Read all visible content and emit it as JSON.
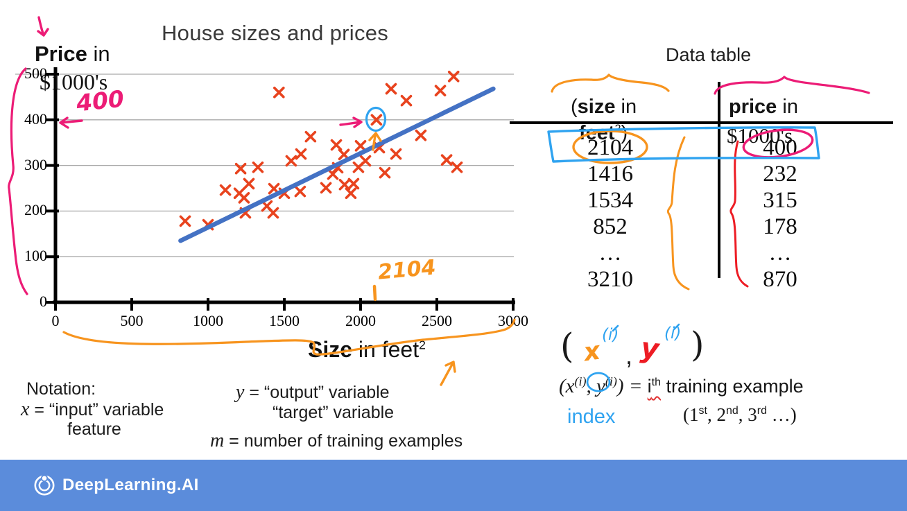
{
  "slide_title": "House sizes and prices",
  "chart_data": {
    "type": "scatter",
    "title": "House sizes and prices",
    "xlabel": {
      "bold": "Size",
      "rest": " in feet",
      "sup": "2"
    },
    "ylabel": {
      "bold": "Price",
      "rest": " in",
      "line2": "$1000's"
    },
    "xlim": [
      0,
      3000
    ],
    "ylim": [
      0,
      500
    ],
    "x_ticks": [
      0,
      500,
      1000,
      1500,
      2000,
      2500,
      3000
    ],
    "y_ticks": [
      0,
      100,
      200,
      300,
      400,
      500
    ],
    "grid": "horizontal",
    "legend": "none",
    "marker": "x",
    "marker_color": "#E8431E",
    "trend_color": "#4472C4",
    "points": [
      [
        850,
        178
      ],
      [
        1000,
        170
      ],
      [
        1114,
        246
      ],
      [
        1205,
        239
      ],
      [
        1214,
        293
      ],
      [
        1236,
        229
      ],
      [
        1245,
        196
      ],
      [
        1268,
        260
      ],
      [
        1327,
        296
      ],
      [
        1386,
        211
      ],
      [
        1427,
        196
      ],
      [
        1432,
        249
      ],
      [
        1465,
        460
      ],
      [
        1500,
        239
      ],
      [
        1545,
        310
      ],
      [
        1604,
        243
      ],
      [
        1609,
        325
      ],
      [
        1672,
        363
      ],
      [
        1773,
        251
      ],
      [
        1818,
        281
      ],
      [
        1841,
        345
      ],
      [
        1850,
        295
      ],
      [
        1891,
        324
      ],
      [
        1895,
        258
      ],
      [
        1936,
        239
      ],
      [
        1954,
        260
      ],
      [
        1986,
        296
      ],
      [
        2000,
        343
      ],
      [
        2032,
        310
      ],
      [
        2104,
        400
      ],
      [
        2123,
        339
      ],
      [
        2159,
        284
      ],
      [
        2200,
        468
      ],
      [
        2232,
        325
      ],
      [
        2300,
        442
      ],
      [
        2395,
        366
      ],
      [
        2523,
        464
      ],
      [
        2564,
        312
      ],
      [
        2610,
        495
      ],
      [
        2632,
        296
      ]
    ],
    "highlighted_point": [
      2104,
      400
    ],
    "trend_line": {
      "x1": 820,
      "y1": 135,
      "x2": 2870,
      "y2": 468
    }
  },
  "annotations": {
    "price_400": "400",
    "size_2104": "2104"
  },
  "data_table": {
    "title": "Data table",
    "size_header": {
      "open": "(",
      "bold": "size",
      "rest": " in",
      "base2": "feet",
      "sup2": "2",
      "close2": ")"
    },
    "price_header": {
      "bold": "price",
      "rest": " in",
      "line2": "$1000's"
    },
    "rows": [
      [
        "2104",
        "400"
      ],
      [
        "1416",
        "232"
      ],
      [
        "1534",
        "315"
      ],
      [
        "852",
        "178"
      ],
      [
        "…",
        "…"
      ],
      [
        "3210",
        "870"
      ]
    ]
  },
  "notation": {
    "heading": "Notation:",
    "x_var": "x",
    "x_rest": " = “input” variable",
    "x_sub": "feature",
    "y_var": "y",
    "y_rest": " = “output” variable",
    "y_sub": "“target” variable",
    "m_var": "m",
    "m_rest": " = number of training examples"
  },
  "example": {
    "hw": {
      "open": "(",
      "x": "x",
      "sup_x": "(i)",
      "comma": ",",
      "y": "y",
      "sup_y": "(i)",
      "close": ")"
    },
    "typed": {
      "p1": "(x",
      "sup1": "(i)",
      "p2": ", y",
      "sup2": "(i)",
      "p3": ") = ",
      "i": "i",
      "th": "th",
      "rest": " training example"
    },
    "index_label": "index",
    "ordinals": {
      "p1": "(1",
      "s1": "st",
      "p2": ", 2",
      "s2": "nd",
      "p3": ", 3",
      "s3": "rd",
      "p4": " …)"
    }
  },
  "footer": {
    "brand": "DeepLearning.AI"
  },
  "colors": {
    "marker": "#E8431E",
    "trend": "#4472C4",
    "pink_ink": "#EC1C76",
    "orange_ink": "#F7941E",
    "blue_ink": "#2FA3F0",
    "red_ink": "#ED1C24",
    "footer_bar": "#5B8CDB"
  }
}
